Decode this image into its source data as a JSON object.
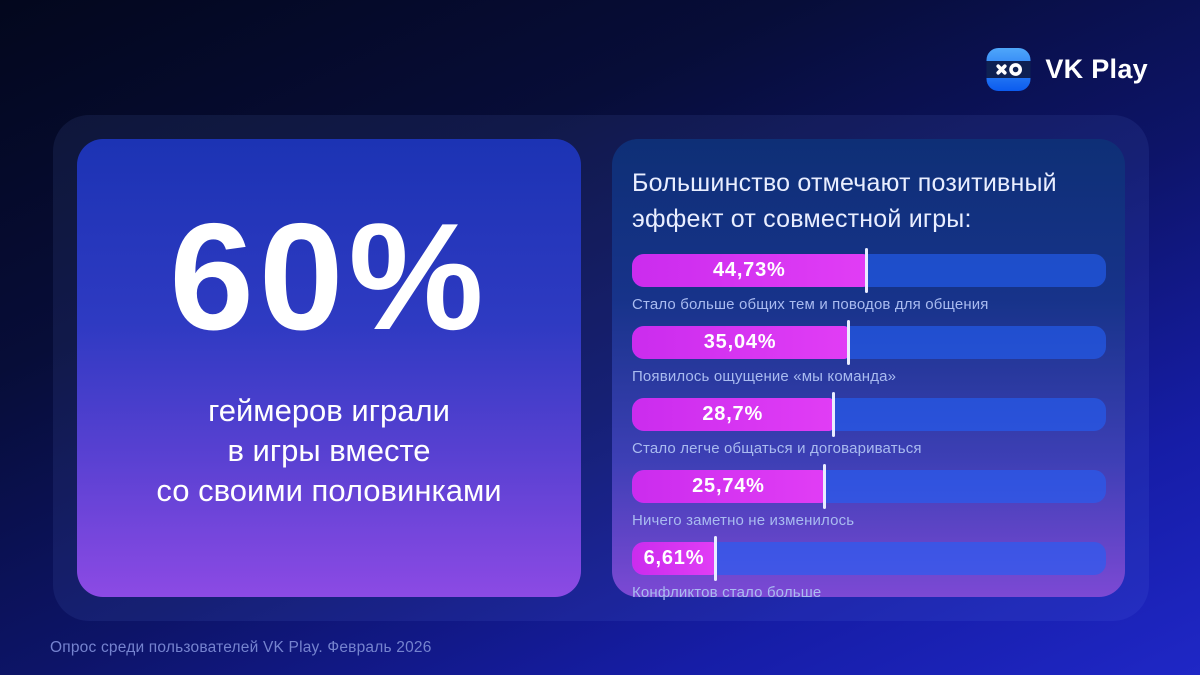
{
  "brand": {
    "name": "VK Play",
    "icon": "vk-play-logo",
    "icon_colors": {
      "square_top": "#4FA7FA",
      "square_bottom": "#0B5BEF",
      "band": "#0E2152",
      "glyphs": "#FFFFFF"
    }
  },
  "left_card": {
    "stat_value": "60%",
    "stat_description_lines": [
      "геймеров играли",
      "в игры вместе",
      "со своими половинками"
    ]
  },
  "right_card": {
    "title_lines": [
      "Большинство отмечают позитивный",
      "эффект от совместной игры:"
    ]
  },
  "chart_data": {
    "type": "bar",
    "orientation": "horizontal",
    "title": "Большинство отмечают позитивный эффект от совместной игры:",
    "unit": "%",
    "categories": [
      "Стало больше общих тем и поводов для общения",
      "Появилось ощущение «мы команда»",
      "Стало легче общаться и договариваться",
      "Ничего заметно не изменилось",
      "Конфликтов стало больше"
    ],
    "values": [
      44.73,
      35.04,
      28.7,
      25.74,
      6.61
    ],
    "value_labels": [
      "44,73%",
      "35,04%",
      "28,7%",
      "25,74%",
      "6,61%"
    ],
    "fill_percents": [
      49.5,
      45.6,
      42.5,
      40.7,
      17.7
    ],
    "xlim": [
      0,
      100
    ],
    "grid": false,
    "legend": false,
    "colors": {
      "fill": "#d934f2",
      "track": "rgba(35,95,245,0.62)",
      "tick": "#e9edff",
      "caption": "#a9bbf0"
    }
  },
  "footer": {
    "source_note": "Опрос среди пользователей VK Play. Февраль 2026"
  },
  "colors": {
    "page_bg_top": "#03071d",
    "page_bg_bottom": "#1f27c6",
    "left_card_top": "#1c33b4",
    "left_card_bottom": "#8c4ae4",
    "right_card_top": "#0e2f76",
    "right_card_bottom": "#7c49d4"
  }
}
